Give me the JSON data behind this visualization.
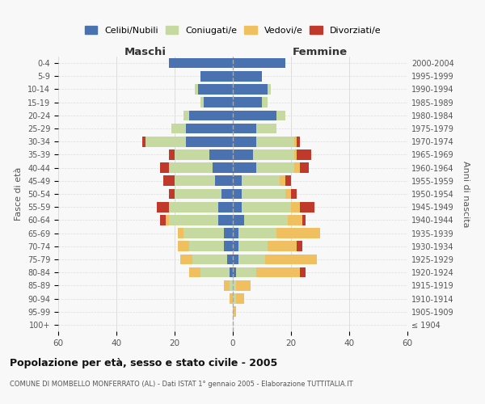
{
  "age_groups": [
    "100+",
    "95-99",
    "90-94",
    "85-89",
    "80-84",
    "75-79",
    "70-74",
    "65-69",
    "60-64",
    "55-59",
    "50-54",
    "45-49",
    "40-44",
    "35-39",
    "30-34",
    "25-29",
    "20-24",
    "15-19",
    "10-14",
    "5-9",
    "0-4"
  ],
  "birth_years": [
    "≤ 1904",
    "1905-1909",
    "1910-1914",
    "1915-1919",
    "1920-1924",
    "1925-1929",
    "1930-1934",
    "1935-1939",
    "1940-1944",
    "1945-1949",
    "1950-1954",
    "1955-1959",
    "1960-1964",
    "1965-1969",
    "1970-1974",
    "1975-1979",
    "1980-1984",
    "1985-1989",
    "1990-1994",
    "1995-1999",
    "2000-2004"
  ],
  "maschi": {
    "celibi": [
      0,
      0,
      0,
      0,
      1,
      2,
      3,
      3,
      5,
      5,
      4,
      6,
      7,
      8,
      16,
      16,
      15,
      10,
      12,
      11,
      22
    ],
    "coniugati": [
      0,
      0,
      0,
      1,
      10,
      12,
      12,
      14,
      17,
      17,
      16,
      14,
      15,
      12,
      14,
      5,
      2,
      1,
      1,
      0,
      0
    ],
    "vedovi": [
      0,
      0,
      1,
      2,
      4,
      4,
      4,
      2,
      1,
      0,
      0,
      0,
      0,
      0,
      0,
      0,
      0,
      0,
      0,
      0,
      0
    ],
    "divorziati": [
      0,
      0,
      0,
      0,
      0,
      0,
      0,
      0,
      2,
      4,
      2,
      4,
      3,
      2,
      1,
      0,
      0,
      0,
      0,
      0,
      0
    ]
  },
  "femmine": {
    "nubili": [
      0,
      0,
      0,
      0,
      1,
      2,
      2,
      2,
      4,
      3,
      3,
      3,
      8,
      7,
      8,
      8,
      15,
      10,
      12,
      10,
      18
    ],
    "coniugate": [
      0,
      0,
      1,
      1,
      7,
      9,
      10,
      13,
      15,
      17,
      15,
      13,
      13,
      14,
      13,
      7,
      3,
      2,
      1,
      0,
      0
    ],
    "vedove": [
      0,
      1,
      3,
      5,
      15,
      18,
      10,
      15,
      5,
      3,
      2,
      2,
      2,
      1,
      1,
      0,
      0,
      0,
      0,
      0,
      0
    ],
    "divorziate": [
      0,
      0,
      0,
      0,
      2,
      0,
      2,
      0,
      1,
      5,
      2,
      2,
      3,
      5,
      1,
      0,
      0,
      0,
      0,
      0,
      0
    ]
  },
  "colors": {
    "celibi": "#4a72b0",
    "coniugati": "#c5d9a0",
    "vedovi": "#f0c060",
    "divorziati": "#c0392b"
  },
  "title": "Popolazione per età, sesso e stato civile - 2005",
  "subtitle": "COMUNE DI MOMBELLO MONFERRATO (AL) - Dati ISTAT 1° gennaio 2005 - Elaborazione TUTTITALIA.IT",
  "xlabel_left": "Maschi",
  "xlabel_right": "Femmine",
  "ylabel": "Fasce di età",
  "ylabel_right": "Anni di nascita",
  "xlim": 60,
  "bg_color": "#f8f8f8",
  "grid_color": "#dddddd"
}
